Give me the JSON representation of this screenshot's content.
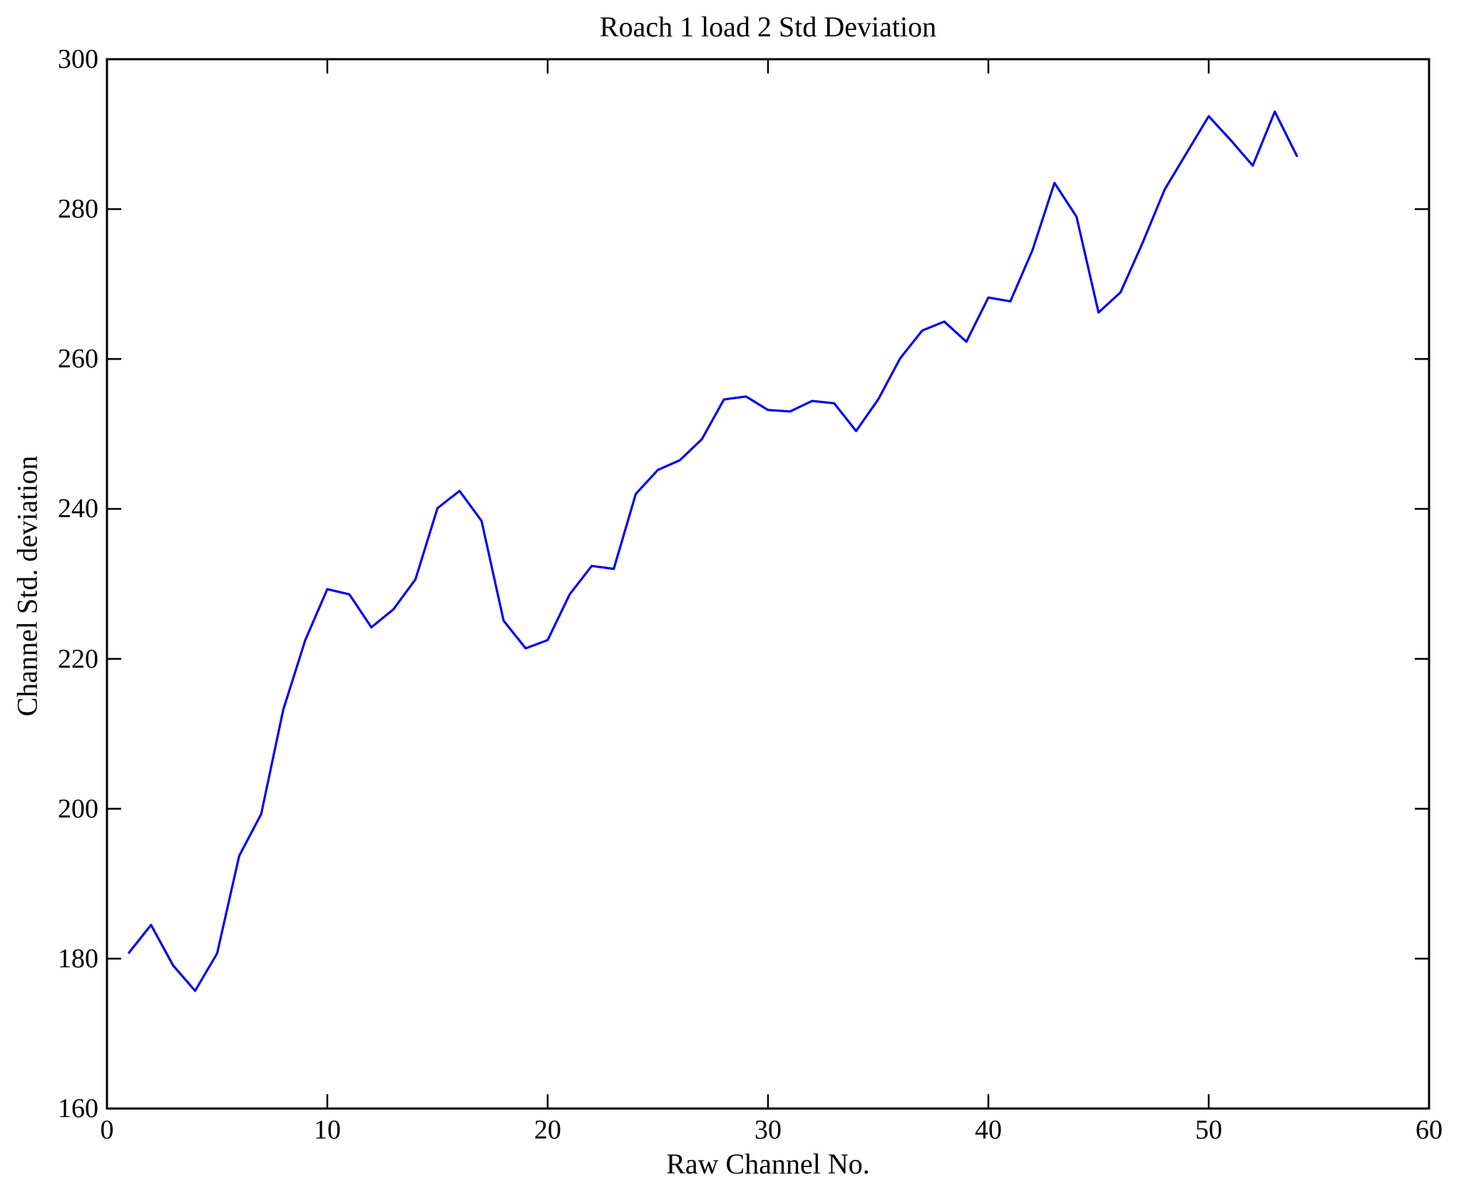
{
  "figure": {
    "title": "Roach 1 load 2 Std Deviation",
    "xlabel": "Raw Channel No.",
    "ylabel": "Channel Std. deviation",
    "background_color": "#ffffff",
    "axis_color": "#000000",
    "line_color": "#0202ee"
  },
  "chart_data": {
    "type": "line",
    "title": "Roach 1 load 2 Std Deviation",
    "xlabel": "Raw Channel No.",
    "ylabel": "Channel Std. deviation",
    "xlim": [
      0,
      60
    ],
    "ylim": [
      160,
      300
    ],
    "x_ticks": [
      0,
      10,
      20,
      30,
      40,
      50,
      60
    ],
    "y_ticks": [
      160,
      180,
      200,
      220,
      240,
      260,
      280,
      300
    ],
    "grid": false,
    "legend_position": "none",
    "series_name": "Channel Std. deviation",
    "x": [
      1,
      2,
      3,
      4,
      5,
      6,
      7,
      8,
      9,
      10,
      11,
      12,
      13,
      14,
      15,
      16,
      17,
      18,
      19,
      20,
      21,
      22,
      23,
      24,
      25,
      26,
      27,
      28,
      29,
      30,
      31,
      32,
      33,
      34,
      35,
      36,
      37,
      38,
      39,
      40,
      41,
      42,
      43,
      44,
      45,
      46,
      47,
      48,
      49,
      50,
      51,
      52,
      53,
      54
    ],
    "values": [
      180.8,
      184.5,
      179.1,
      175.7,
      180.7,
      193.7,
      199.3,
      213.2,
      222.5,
      229.3,
      228.6,
      224.2,
      226.6,
      230.6,
      240.1,
      242.4,
      238.4,
      225.1,
      221.4,
      222.5,
      228.6,
      232.4,
      232.0,
      242.0,
      245.2,
      246.5,
      249.3,
      254.6,
      255.0,
      253.2,
      253.0,
      254.4,
      254.1,
      250.4,
      254.6,
      260.1,
      263.8,
      265.0,
      262.3,
      268.2,
      267.7,
      274.5,
      283.5,
      279.0,
      266.2,
      268.9,
      275.5,
      282.6,
      287.5,
      292.4,
      289.2,
      285.8,
      293.0,
      287.1
    ]
  }
}
